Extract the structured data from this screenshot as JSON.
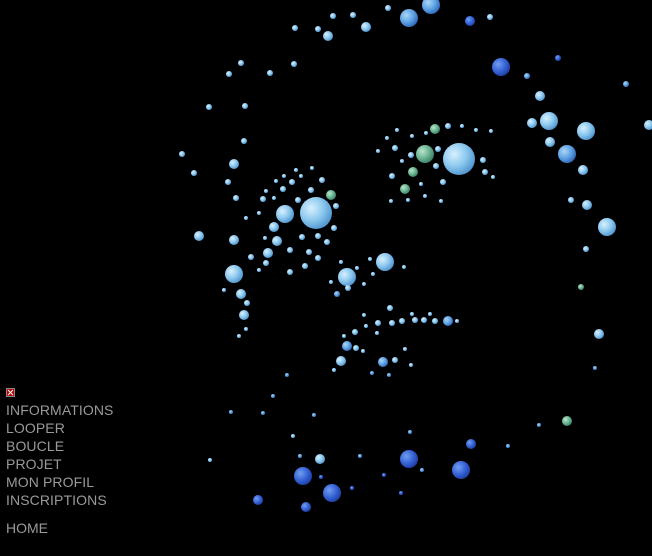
{
  "menu": {
    "items": [
      {
        "label": "INFORMATIONS"
      },
      {
        "label": "LOOPER"
      },
      {
        "label": "BOUCLE"
      },
      {
        "label": "PROJET"
      },
      {
        "label": "MON PROFIL"
      },
      {
        "label": "INSCRIPTIONS"
      }
    ],
    "home_label": "HOME"
  },
  "artwork": {
    "background_color": "#000000",
    "palette": [
      "#7ec4ee",
      "#a9d8f5",
      "#4a8fd8",
      "#2a5fcf",
      "#6db88e",
      "#3f6fd6"
    ]
  },
  "icons": {
    "broken_image": "broken-image-icon"
  }
}
